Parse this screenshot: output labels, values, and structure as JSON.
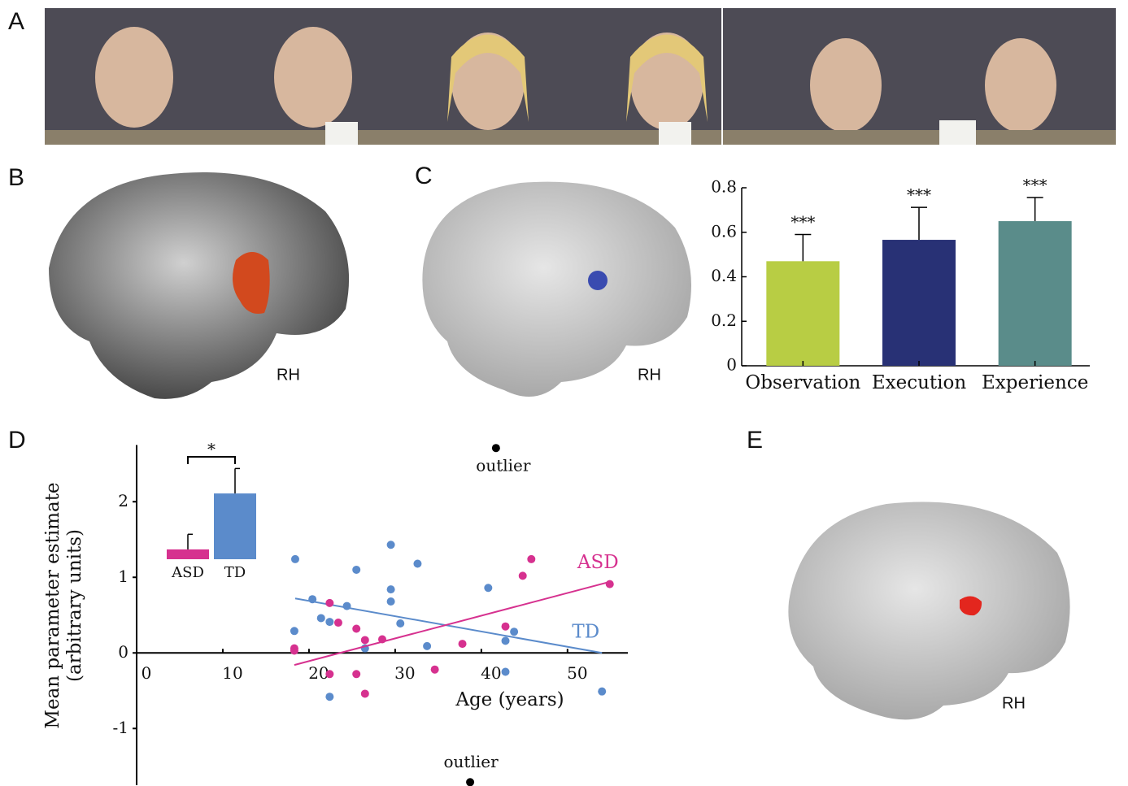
{
  "panels": {
    "labels": [
      "A",
      "B",
      "C",
      "D",
      "E"
    ],
    "hemisphere": "RH"
  },
  "chart_data": [
    {
      "type": "bar",
      "categories": [
        "Observation",
        "Execution",
        "Experience"
      ],
      "values": [
        0.47,
        0.566,
        0.65
      ],
      "errors": [
        0.12,
        0.146,
        0.106
      ],
      "colors": [
        "#b8cd44",
        "#283175",
        "#5a8c8a"
      ],
      "annotations": [
        "***",
        "***",
        "***"
      ],
      "ylim": [
        0,
        0.8
      ],
      "yticks": [
        0,
        0.2,
        0.4,
        0.6,
        0.8
      ]
    },
    {
      "type": "scatter",
      "xlabel": "Age (years)",
      "ylabel": [
        "Mean parameter estimate",
        "(arbitrary units)"
      ],
      "xlim": [
        0,
        57
      ],
      "ylim": [
        -1.75,
        2.75
      ],
      "xticks": [
        0,
        10,
        20,
        30,
        40,
        50
      ],
      "yticks": [
        -1,
        0,
        1,
        2
      ],
      "series": [
        {
          "name": "TD",
          "color": "#5b8bcb",
          "x": [
            18.4,
            18.3,
            20.4,
            21.4,
            22.4,
            24.4,
            25.5,
            22.4,
            26.5,
            29.5,
            29.5,
            29.5,
            30.6,
            32.6,
            33.7,
            40.8,
            42.8,
            43.8,
            42.8,
            54
          ],
          "values": [
            1.24,
            0.29,
            0.71,
            0.46,
            0.41,
            0.62,
            1.1,
            -0.58,
            0.06,
            1.43,
            0.84,
            0.68,
            0.39,
            1.18,
            0.09,
            0.86,
            0.16,
            0.28,
            -0.25,
            -0.51
          ],
          "fit_x": [
            18.4,
            54
          ],
          "fit_values": [
            0.72,
            0
          ]
        },
        {
          "name": "ASD",
          "color": "#d6318f",
          "x": [
            18.3,
            18.3,
            22.4,
            23.4,
            25.5,
            26.5,
            28.5,
            22.4,
            25.5,
            26.5,
            34.6,
            37.8,
            42.8,
            44.8,
            45.8,
            54.9
          ],
          "values": [
            0.06,
            0.03,
            0.66,
            0.4,
            0.32,
            0.17,
            0.18,
            -0.28,
            -0.28,
            -0.54,
            -0.22,
            0.12,
            0.35,
            1.02,
            1.24,
            0.91
          ],
          "fit_x": [
            18.3,
            54.9
          ],
          "fit_values": [
            -0.16,
            0.94
          ]
        }
      ],
      "outliers": {
        "label": "outlier",
        "color": "#000000",
        "x": [
          41.7,
          38.7
        ],
        "values": [
          2.71,
          -1.71
        ]
      }
    },
    {
      "type": "bar",
      "categories": [
        "ASD",
        "TD"
      ],
      "values": [
        0.13,
        0.87
      ],
      "errors": [
        0.2,
        0.33
      ],
      "colors": [
        "#d6318f",
        "#5b8bcb"
      ],
      "annotation": "*"
    }
  ]
}
